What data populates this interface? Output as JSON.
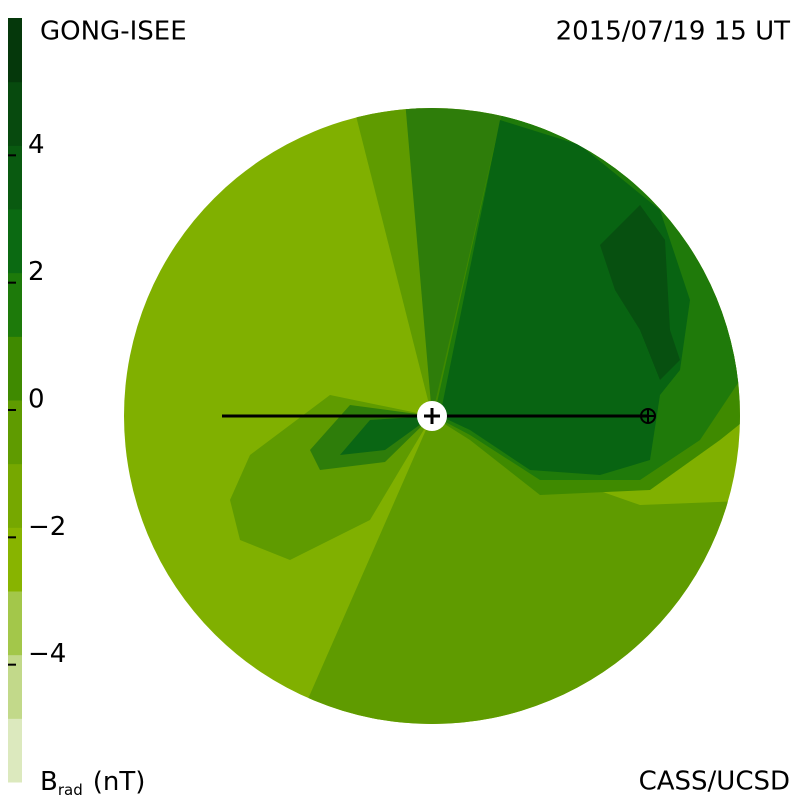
{
  "header": {
    "source": "GONG-ISEE",
    "datetime": "2015/07/19 15 UT"
  },
  "footer": {
    "credit": "CASS/UCSD"
  },
  "colorbar": {
    "lim": [
      -6,
      6
    ],
    "ticks": [
      4,
      2,
      0,
      {
        "value": -2,
        "label": "−2"
      },
      {
        "value": -4,
        "label": "−4"
      }
    ],
    "colors": [
      "#dce9be",
      "#c2d98a",
      "#a3c74a",
      "#88b400",
      "#76a800",
      "#5f9b00",
      "#3f8a00",
      "#1d7a0a",
      "#0b6a12",
      "#095a10",
      "#074a0e",
      "#05380b"
    ],
    "label": {
      "symbol": "B",
      "subscript": "rad",
      "unit": "(nT)"
    }
  }
}
